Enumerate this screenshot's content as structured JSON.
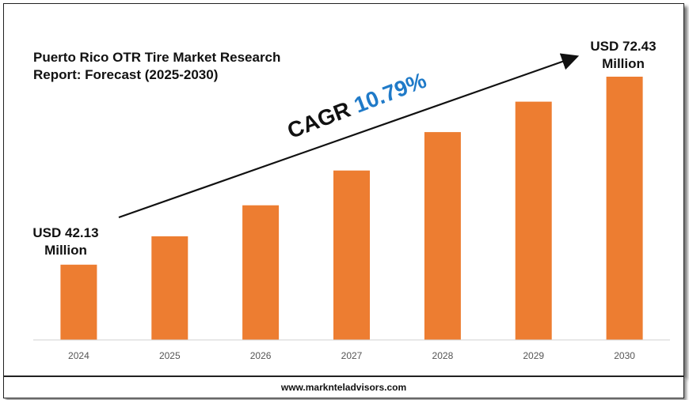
{
  "chart_data": {
    "type": "bar",
    "title": "Puerto Rico OTR Tire Market Research Report: Forecast (2025-2030)",
    "categories": [
      "2024",
      "2025",
      "2026",
      "2027",
      "2028",
      "2029",
      "2030"
    ],
    "values": [
      42.13,
      46.7,
      51.7,
      57.3,
      63.5,
      68.4,
      72.43
    ],
    "xlabel": "",
    "ylabel": "",
    "grid": false,
    "bar_color": "#ed7d31",
    "annotations": {
      "start_label": "USD 42.13 Million",
      "start_line1": "USD 42.13",
      "start_line2": "Million",
      "end_label": "USD 72.43 Million",
      "end_line1": "USD 72.43",
      "end_line2": "Million",
      "cagr_label": "CAGR",
      "cagr_value": "10.79%",
      "cagr_color": "#1f7ac8"
    }
  },
  "footer": {
    "website": "www.marknteladvisors.com"
  }
}
